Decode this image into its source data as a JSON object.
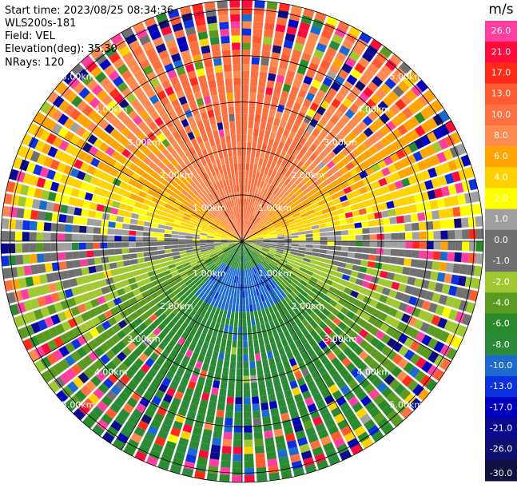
{
  "info": {
    "start_time": "Start time: 2023/08/25 08:34:36",
    "instrument": "WLS200s-181",
    "field": "Field: VEL",
    "elevation": "Elevation(deg): 35.30",
    "nrays": "NRays: 120"
  },
  "colorbar": {
    "unit": "m/s",
    "ticks": [
      "26.0",
      "21.0",
      "17.0",
      "13.0",
      "10.0",
      "8.0",
      "6.0",
      "4.0",
      "2.0",
      "1.0",
      "0.0",
      "-1.0",
      "-2.0",
      "-4.0",
      "-6.0",
      "-8.0",
      "-10.0",
      "-13.0",
      "-17.0",
      "-21.0",
      "-26.0",
      "-30.0"
    ],
    "colors": [
      "#ff3fa0",
      "#ff0a3c",
      "#ff2a18",
      "#ff5a30",
      "#ff7040",
      "#ff8a50",
      "#ffa400",
      "#ffd200",
      "#ffff00",
      "#a0a0a0",
      "#707070",
      "#707070",
      "#a0c830",
      "#5a9a20",
      "#2a8a2a",
      "#2a8a3a",
      "#1a6ad0",
      "#0a30e0",
      "#0000c0",
      "#0a0a90",
      "#101070",
      "#101040"
    ]
  },
  "chart_data": {
    "type": "ppi",
    "field": "VEL",
    "unit": "m/s",
    "nrays": 120,
    "elevation_deg": 35.3,
    "range_rings_km": [
      1,
      2,
      3,
      4,
      5
    ],
    "ring_labels": [
      "1.00km",
      "2.00km",
      "3.00km",
      "4.00km",
      "5.00km"
    ],
    "max_range_km": 5.2,
    "azimuth_lines_deg": [
      0,
      30,
      60,
      90,
      120,
      150,
      180,
      210,
      240,
      270,
      300,
      330
    ],
    "velocity_pattern": {
      "north_sector_ms": 9,
      "south_sector_ms": -9,
      "east_west_ms": 0,
      "center_south_ms": -12
    }
  }
}
